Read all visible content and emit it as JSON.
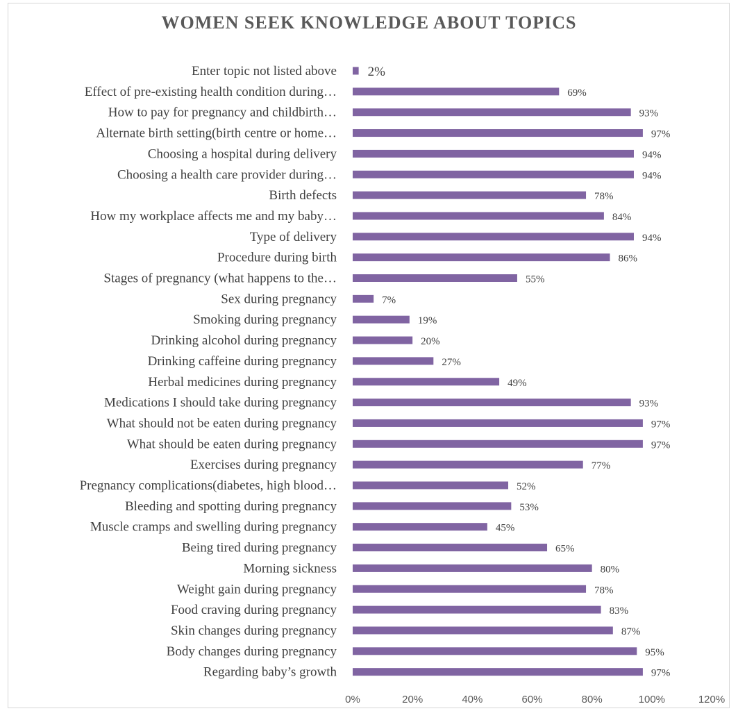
{
  "chart_data": {
    "type": "bar",
    "orientation": "horizontal",
    "title": "WOMEN SEEK KNOWLEDGE ABOUT TOPICS",
    "xlabel": "",
    "ylabel": "",
    "xlim": [
      0,
      1.2
    ],
    "x_ticks": [
      "0%",
      "20%",
      "40%",
      "60%",
      "80%",
      "100%",
      "120%"
    ],
    "bar_color": "#8064a2",
    "grid": false,
    "legend": "none",
    "categories": [
      "Enter topic  not listed above",
      "Effect of pre-existing health condition during…",
      "How to pay for pregnancy and childbirth…",
      "Alternate birth setting(birth centre or home…",
      "Choosing a hospital during delivery",
      "Choosing a health care provider during…",
      "Birth defects",
      "How my workplace affects me and my baby…",
      "Type of delivery",
      "Procedure during birth",
      "Stages of pregnancy (what happens to the…",
      "Sex during pregnancy",
      "Smoking during pregnancy",
      "Drinking alcohol during pregnancy",
      "Drinking caffeine during pregnancy",
      "Herbal medicines during pregnancy",
      "Medications I should take during pregnancy",
      "What should not be eaten during pregnancy",
      "What should be eaten during pregnancy",
      "Exercises during pregnancy",
      "Pregnancy complications(diabetes, high blood…",
      "Bleeding and spotting during pregnancy",
      "Muscle cramps and swelling during pregnancy",
      "Being tired during pregnancy",
      "Morning sickness",
      "Weight gain during pregnancy",
      "Food craving during pregnancy",
      "Skin changes during pregnancy",
      "Body changes during pregnancy",
      "Regarding  baby’s growth"
    ],
    "values": [
      0.02,
      0.69,
      0.93,
      0.97,
      0.94,
      0.94,
      0.78,
      0.84,
      0.94,
      0.86,
      0.55,
      0.07,
      0.19,
      0.2,
      0.27,
      0.49,
      0.93,
      0.97,
      0.97,
      0.77,
      0.52,
      0.53,
      0.45,
      0.65,
      0.8,
      0.78,
      0.83,
      0.87,
      0.95,
      0.97
    ],
    "data_labels": [
      "2%",
      "69%",
      "93%",
      "97%",
      "94%",
      "94%",
      "78%",
      "84%",
      "94%",
      "86%",
      "55%",
      "7%",
      "19%",
      "20%",
      "27%",
      "49%",
      "93%",
      "97%",
      "97%",
      "77%",
      "52%",
      "53%",
      "45%",
      "65%",
      "80%",
      "78%",
      "83%",
      "87%",
      "95%",
      "97%"
    ]
  }
}
